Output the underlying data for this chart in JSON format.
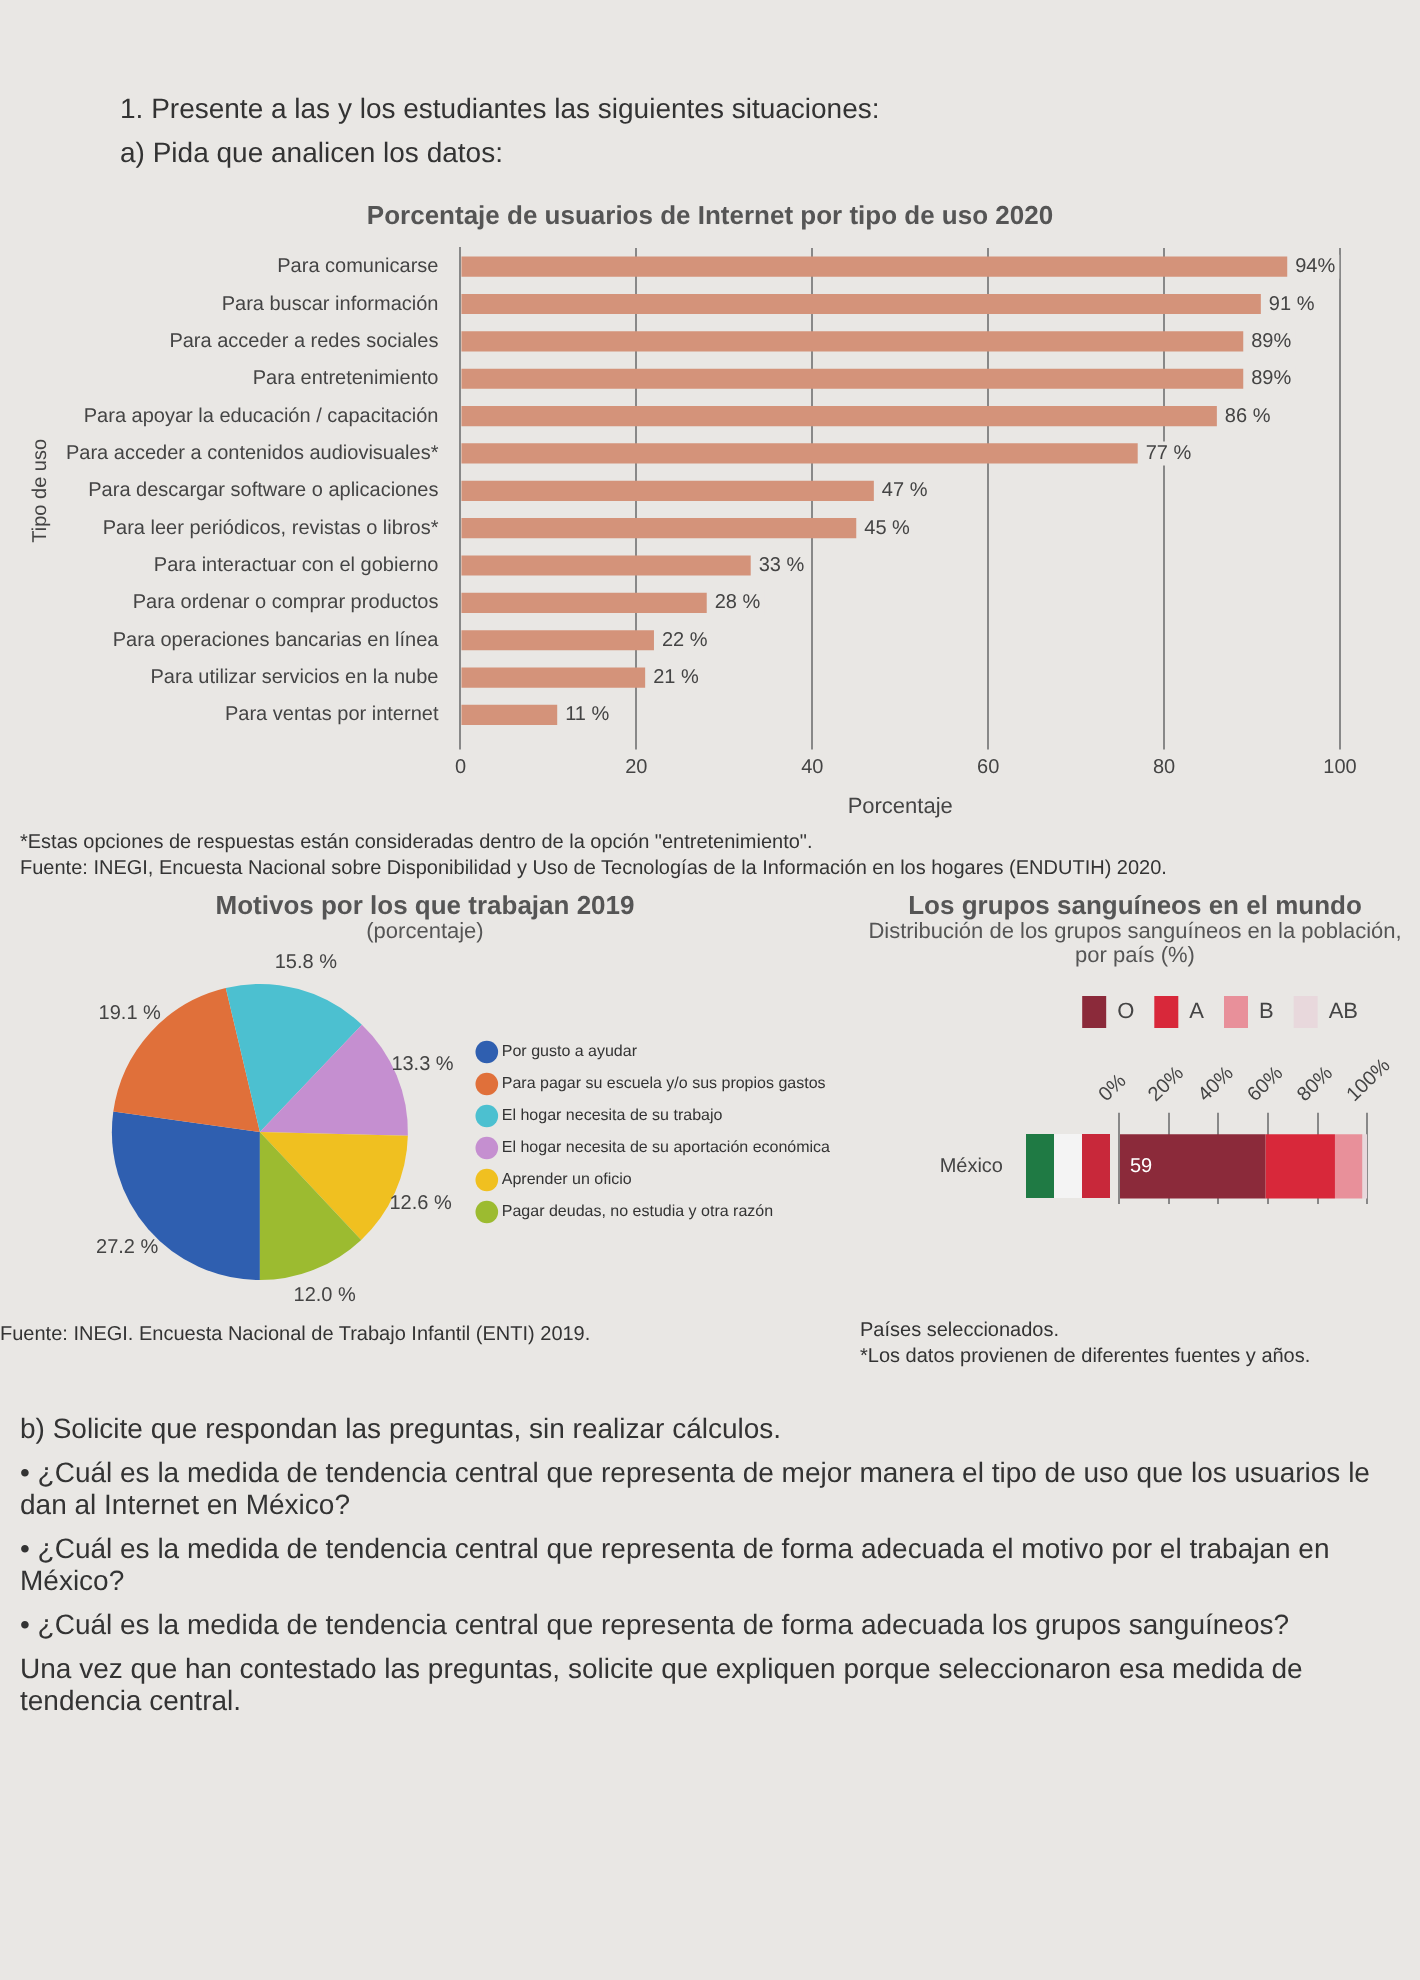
{
  "chart_data": [
    {
      "type": "other",
      "annotations": [
        "1. Presente a las y los estudiantes las siguientes situaciones:",
        "a) Pida que analicen los datos:"
      ]
    },
    {
      "type": "bar",
      "orientation": "horizontal",
      "title": "Porcentaje de usuarios de Internet por tipo de uso 2020",
      "xlabel": "Porcentaje",
      "ylabel": "Tipo de uso",
      "categories": [
        "Para comunicarse",
        "Para buscar información",
        "Para acceder a redes sociales",
        "Para entretenimiento",
        "Para apoyar la educación / capacitación",
        "Para acceder a contenidos audiovisuales*",
        "Para descargar software o aplicaciones",
        "Para leer periódicos, revistas o libros*",
        "Para interactuar con el gobierno",
        "Para ordenar o comprar productos",
        "Para operaciones bancarias en línea",
        "Para utilizar servicios en la nube",
        "Para ventas por internet"
      ],
      "values": [
        94,
        91,
        89,
        89,
        86,
        77,
        47,
        45,
        33,
        28,
        22,
        21,
        11
      ],
      "value_labels": [
        "94%",
        "91 %",
        "89%",
        "89%",
        "86 %",
        "77 %",
        "47 %",
        "45 %",
        "33 %",
        "28 %",
        "22 %",
        "21 %",
        "11 %"
      ],
      "color": "#d4937a",
      "xlim": [
        0,
        100
      ],
      "xticks": [
        0,
        20,
        40,
        60,
        80,
        100
      ],
      "grid": "x",
      "annotations": [
        "*Estas opciones de respuestas están consideradas dentro de la opción \"entretenimiento\".",
        "Fuente: INEGI, Encuesta Nacional sobre Disponibilidad y Uso de Tecnologías de la Información en los hogares (ENDUTIH) 2020."
      ]
    },
    {
      "type": "pie",
      "title": "Motivos por los que trabajan 2019",
      "subtitle": "(porcentaje)",
      "categories": [
        "Por gusto a ayudar",
        "Para pagar su escuela y/o sus propios gastos",
        "El hogar necesita de su trabajo",
        "El hogar necesita de su aportación económica",
        "Aprender un oficio",
        "Pagar deudas, no estudia y otra razón"
      ],
      "values": [
        27.2,
        19.1,
        15.8,
        13.3,
        12.6,
        12.0
      ],
      "value_labels": [
        "27.2 %",
        "19.1 %",
        "15.8 %",
        "13.3 %",
        "12.6 %",
        "12.0 %"
      ],
      "colors": [
        "#2f5fb0",
        "#e0703a",
        "#4cc0d0",
        "#c58fd0",
        "#f0c020",
        "#9cbb30"
      ],
      "legend": "right",
      "annotations": [
        "Fuente: INEGI. Encuesta Nacional de Trabajo Infantil (ENTI) 2019."
      ]
    },
    {
      "type": "bar",
      "orientation": "horizontal",
      "stacked": true,
      "title": "Los grupos sanguíneos en el mundo",
      "subtitle": "Distribución de los grupos sanguíneos en la población, por país (%)",
      "categories": [
        "México"
      ],
      "series": [
        {
          "name": "O",
          "color": "#8b2a3a",
          "values": [
            59
          ],
          "value_labels": [
            "59"
          ]
        },
        {
          "name": "A",
          "color": "#d8283a",
          "values": [
            28
          ]
        },
        {
          "name": "B",
          "color": "#e8909a",
          "values": [
            11
          ]
        },
        {
          "name": "AB",
          "color": "#e8d8dc",
          "values": [
            2
          ]
        }
      ],
      "xlim": [
        0,
        100
      ],
      "xticks": [
        {
          "value": 0,
          "label": "0%"
        },
        {
          "value": 20,
          "label": "20%"
        },
        {
          "value": 40,
          "label": "40%"
        },
        {
          "value": 60,
          "label": "60%"
        },
        {
          "value": 80,
          "label": "80%"
        },
        {
          "value": 100,
          "label": "100%"
        }
      ],
      "grid": "x",
      "legend": "top",
      "annotations": [
        "Países seleccionados.",
        "*Los datos provienen de diferentes fuentes y años."
      ]
    },
    {
      "type": "other",
      "annotations": [
        "b) Solicite que respondan las preguntas, sin realizar cálculos.",
        "• ¿Cuál es la medida de tendencia central que representa de mejor manera el tipo de uso que los usuarios le dan al Internet en México?",
        "• ¿Cuál es la medida de tendencia central que representa de forma adecuada el motivo por el trabajan en México?",
        "• ¿Cuál es la medida de tendencia central que representa de forma adecuada los grupos sanguíneos?",
        "Una vez que han contestado las preguntas, solicite que expliquen porque seleccionaron esa medida de tendencia central."
      ]
    }
  ]
}
